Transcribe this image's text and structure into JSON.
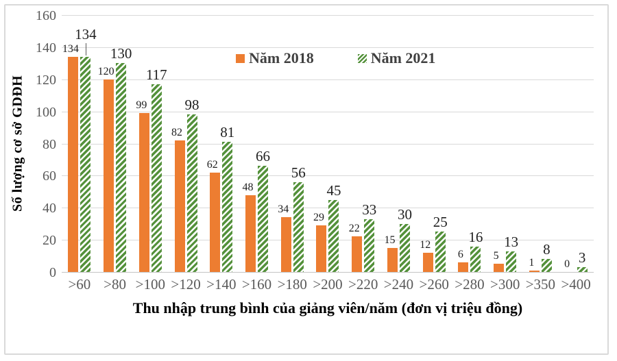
{
  "chart_data": {
    "type": "bar",
    "categories": [
      ">60",
      ">80",
      ">100",
      ">120",
      ">140",
      ">160",
      ">180",
      ">200",
      ">220",
      ">240",
      ">260",
      ">280",
      ">300",
      ">350",
      ">400"
    ],
    "series": [
      {
        "name": "Năm 2018",
        "color": "#ED7D31",
        "pattern": "solid",
        "values": [
          134,
          120,
          99,
          82,
          62,
          48,
          34,
          29,
          22,
          15,
          12,
          6,
          5,
          1,
          0
        ]
      },
      {
        "name": "Năm 2021",
        "color": "#54913B",
        "pattern": "diagonal-hatch",
        "values": [
          134,
          130,
          117,
          98,
          81,
          66,
          56,
          45,
          33,
          30,
          25,
          16,
          13,
          8,
          3
        ]
      }
    ],
    "ylabel": "Số lượng cơ sở GDĐH",
    "xlabel": "Thu nhập trung bình của giảng viên/năm (đơn vị triệu đồng)",
    "ylim": [
      0,
      160
    ],
    "ytick_step": 20,
    "yticks": [
      0,
      20,
      40,
      60,
      80,
      100,
      120,
      140,
      160
    ],
    "grid": true,
    "legend_position": "top-center",
    "leader_line_category_index": 0,
    "data_labels": true
  },
  "colors": {
    "background": "#FFFFFF",
    "border": "#D9D9D9",
    "gridline": "#D9D9D9",
    "axis_line": "#C3C3C3",
    "tick_text": "#595959",
    "data_label_text": "#1F1F1F",
    "legend_text": "#404040",
    "series_2018": "#ED7D31",
    "series_2021": "#54913B"
  }
}
